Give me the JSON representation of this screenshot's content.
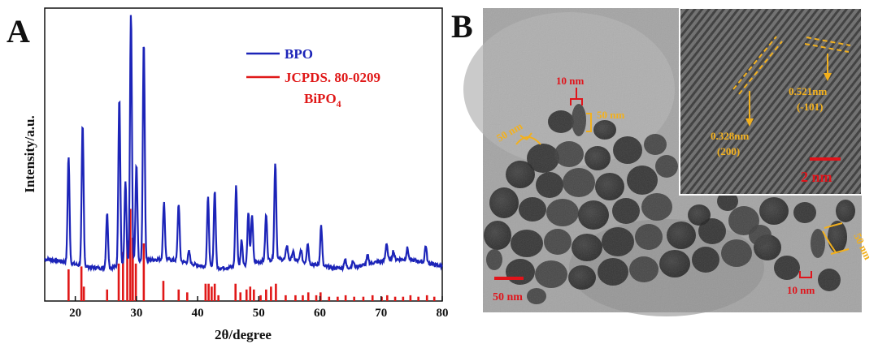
{
  "panel_a_label": "A",
  "panel_b_label": "B",
  "chart_data": {
    "type": "line",
    "title": "",
    "xlabel": "2θ/degree",
    "ylabel": "Intensity/a.u.",
    "xlim": [
      15,
      80
    ],
    "x_ticks": [
      "20",
      "30",
      "40",
      "50",
      "60",
      "70",
      "80"
    ],
    "y_ticks_shown": false,
    "legend_position": "top-right",
    "series": [
      {
        "name": "BPO",
        "color": "#1c24b8",
        "baseline": 0.13,
        "peaks": [
          {
            "x": 18.9,
            "y": 0.5
          },
          {
            "x": 21.2,
            "y": 0.62
          },
          {
            "x": 25.2,
            "y": 0.32
          },
          {
            "x": 27.2,
            "y": 0.72
          },
          {
            "x": 28.2,
            "y": 0.42
          },
          {
            "x": 29.1,
            "y": 1.0
          },
          {
            "x": 30.0,
            "y": 0.47
          },
          {
            "x": 31.2,
            "y": 0.9
          },
          {
            "x": 34.5,
            "y": 0.33
          },
          {
            "x": 36.9,
            "y": 0.33
          },
          {
            "x": 38.6,
            "y": 0.17
          },
          {
            "x": 41.7,
            "y": 0.37
          },
          {
            "x": 42.8,
            "y": 0.4
          },
          {
            "x": 46.3,
            "y": 0.41
          },
          {
            "x": 47.2,
            "y": 0.22
          },
          {
            "x": 48.3,
            "y": 0.31
          },
          {
            "x": 48.9,
            "y": 0.3
          },
          {
            "x": 51.2,
            "y": 0.29
          },
          {
            "x": 52.7,
            "y": 0.47
          },
          {
            "x": 54.6,
            "y": 0.18
          },
          {
            "x": 55.6,
            "y": 0.16
          },
          {
            "x": 56.9,
            "y": 0.17
          },
          {
            "x": 58.0,
            "y": 0.2
          },
          {
            "x": 60.2,
            "y": 0.27
          },
          {
            "x": 64.1,
            "y": 0.16
          },
          {
            "x": 65.4,
            "y": 0.15
          },
          {
            "x": 67.8,
            "y": 0.16
          },
          {
            "x": 70.9,
            "y": 0.19
          },
          {
            "x": 72.0,
            "y": 0.16
          },
          {
            "x": 74.3,
            "y": 0.17
          },
          {
            "x": 77.3,
            "y": 0.19
          }
        ]
      },
      {
        "name": "JCPDS. 80-0209\nBiPO",
        "subscript": "4",
        "color": "#e01818",
        "type": "reference-bars",
        "bars": [
          {
            "x": 18.9,
            "y": 0.11
          },
          {
            "x": 21.0,
            "y": 0.12
          },
          {
            "x": 21.4,
            "y": 0.05
          },
          {
            "x": 25.2,
            "y": 0.04
          },
          {
            "x": 27.1,
            "y": 0.13
          },
          {
            "x": 27.8,
            "y": 0.17
          },
          {
            "x": 28.5,
            "y": 0.21
          },
          {
            "x": 29.0,
            "y": 0.32
          },
          {
            "x": 29.4,
            "y": 0.22
          },
          {
            "x": 29.9,
            "y": 0.13
          },
          {
            "x": 31.2,
            "y": 0.2
          },
          {
            "x": 34.4,
            "y": 0.07
          },
          {
            "x": 36.9,
            "y": 0.04
          },
          {
            "x": 38.3,
            "y": 0.03
          },
          {
            "x": 41.3,
            "y": 0.06
          },
          {
            "x": 41.8,
            "y": 0.06
          },
          {
            "x": 42.3,
            "y": 0.05
          },
          {
            "x": 42.8,
            "y": 0.06
          },
          {
            "x": 43.4,
            "y": 0.02
          },
          {
            "x": 46.2,
            "y": 0.06
          },
          {
            "x": 47.0,
            "y": 0.03
          },
          {
            "x": 48.0,
            "y": 0.04
          },
          {
            "x": 48.6,
            "y": 0.05
          },
          {
            "x": 49.2,
            "y": 0.04
          },
          {
            "x": 50.3,
            "y": 0.02
          },
          {
            "x": 51.2,
            "y": 0.04
          },
          {
            "x": 52.0,
            "y": 0.05
          },
          {
            "x": 52.8,
            "y": 0.06
          },
          {
            "x": 54.4,
            "y": 0.02
          },
          {
            "x": 56.0,
            "y": 0.02
          },
          {
            "x": 57.2,
            "y": 0.02
          },
          {
            "x": 58.1,
            "y": 0.03
          },
          {
            "x": 59.4,
            "y": 0.02
          },
          {
            "x": 60.1,
            "y": 0.03
          },
          {
            "x": 61.5,
            "y": 0.015
          },
          {
            "x": 62.9,
            "y": 0.015
          },
          {
            "x": 64.2,
            "y": 0.02
          },
          {
            "x": 65.6,
            "y": 0.015
          },
          {
            "x": 67.1,
            "y": 0.015
          },
          {
            "x": 68.6,
            "y": 0.02
          },
          {
            "x": 70.1,
            "y": 0.015
          },
          {
            "x": 71.0,
            "y": 0.02
          },
          {
            "x": 72.3,
            "y": 0.015
          },
          {
            "x": 73.6,
            "y": 0.015
          },
          {
            "x": 74.8,
            "y": 0.02
          },
          {
            "x": 76.1,
            "y": 0.015
          },
          {
            "x": 77.5,
            "y": 0.02
          },
          {
            "x": 78.7,
            "y": 0.015
          }
        ]
      }
    ]
  },
  "tem": {
    "annotations_red": [
      "10 nm",
      "10 nm"
    ],
    "annotations_gold": [
      "50 nm",
      "50 nm",
      "50 nm"
    ],
    "scale_main": "50 nm",
    "inset": {
      "d1_value": "0.328nm",
      "d1_plane": "(200)",
      "d2_value": "0.521nm",
      "d2_plane": "(-101)",
      "scale": "2 nm"
    }
  }
}
